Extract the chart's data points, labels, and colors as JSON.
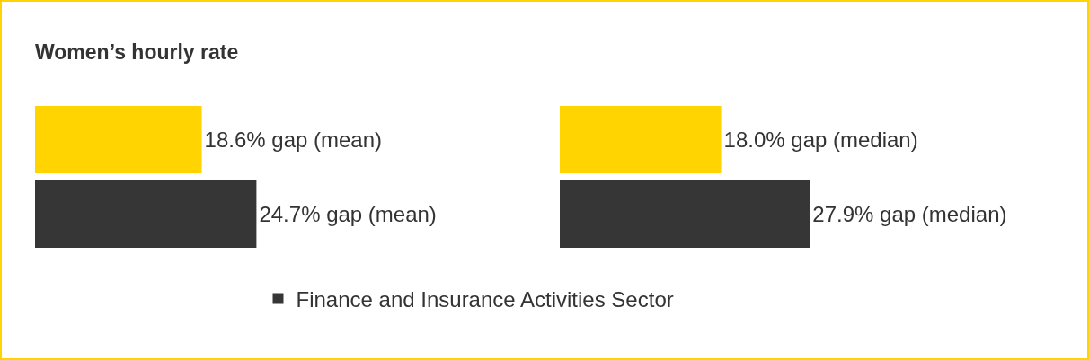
{
  "chart_data": [
    {
      "type": "bar",
      "orientation": "horizontal",
      "title": "Women’s hourly rate",
      "categories": [
        null
      ],
      "series": [
        {
          "color": "#ffd400",
          "values": [
            18.6
          ],
          "value_labels": [
            "18.6% gap (mean)"
          ]
        },
        {
          "name": "Finance and Insurance Activities Sector",
          "color": "#363636",
          "values": [
            24.7
          ],
          "value_labels": [
            "24.7% gap (mean)"
          ]
        }
      ],
      "legend": "bottom"
    },
    {
      "type": "bar",
      "orientation": "horizontal",
      "categories": [
        null
      ],
      "series": [
        {
          "color": "#ffd400",
          "values": [
            18.0
          ],
          "value_labels": [
            "18.0% gap (median)"
          ]
        },
        {
          "color": "#363636",
          "values": [
            27.9
          ],
          "value_labels": [
            "27.9% gap (median)"
          ]
        }
      ]
    }
  ]
}
